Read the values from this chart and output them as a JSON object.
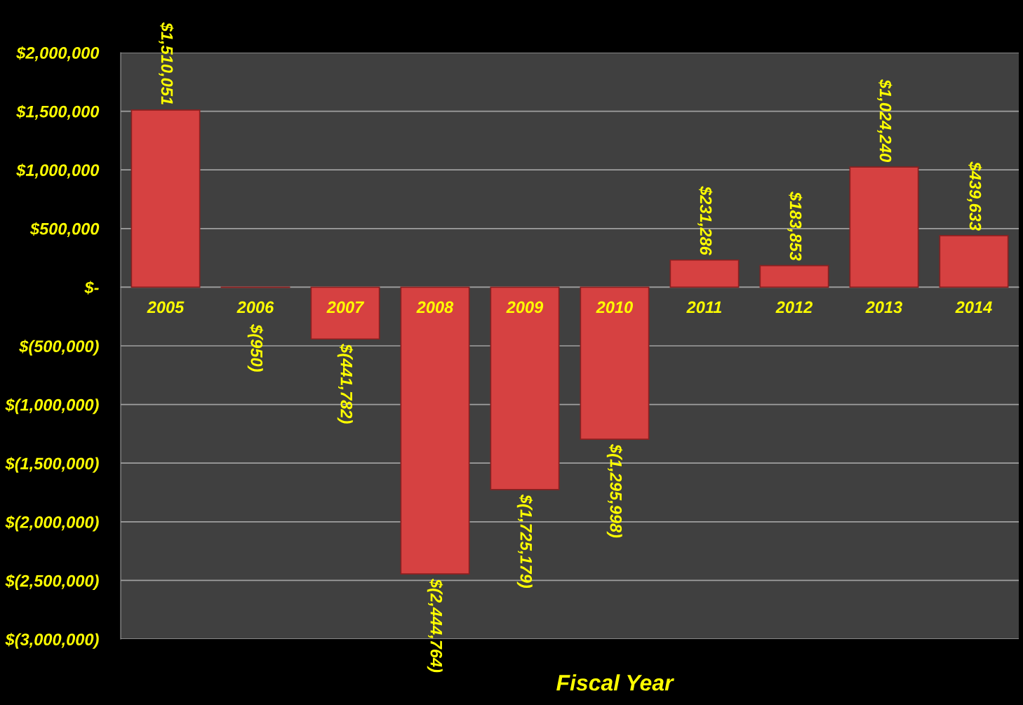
{
  "chart_data": {
    "type": "bar",
    "xlabel": "Fiscal Year",
    "categories": [
      "2005",
      "2006",
      "2007",
      "2008",
      "2009",
      "2010",
      "2011",
      "2012",
      "2013",
      "2014"
    ],
    "values": [
      1510051,
      -950,
      -441782,
      -2444764,
      -1725179,
      -1295998,
      231286,
      183853,
      1024240,
      439633
    ],
    "value_labels": [
      "$1,510,051",
      "$(950)",
      "$(441,782)",
      "$(2,444,764)",
      "$(1,725,179)",
      "$(1,295,998)",
      "$231,286",
      "$183,853",
      "$1,024,240",
      "$439,633"
    ],
    "color": "#d64141",
    "ylim": [
      -3000000,
      2000000
    ],
    "yticks": [
      {
        "value": 2000000,
        "label": "$2,000,000"
      },
      {
        "value": 1500000,
        "label": "$1,500,000"
      },
      {
        "value": 1000000,
        "label": "$1,000,000"
      },
      {
        "value": 500000,
        "label": "$500,000"
      },
      {
        "value": 0,
        "label": "$-"
      },
      {
        "value": -500000,
        "label": "$(500,000)"
      },
      {
        "value": -1000000,
        "label": "$(1,000,000)"
      },
      {
        "value": -1500000,
        "label": "$(1,500,000)"
      },
      {
        "value": -2000000,
        "label": "$(2,000,000)"
      },
      {
        "value": -2500000,
        "label": "$(2,500,000)"
      },
      {
        "value": -3000000,
        "label": "$(3,000,000)"
      }
    ],
    "grid": "y",
    "legend": false
  }
}
